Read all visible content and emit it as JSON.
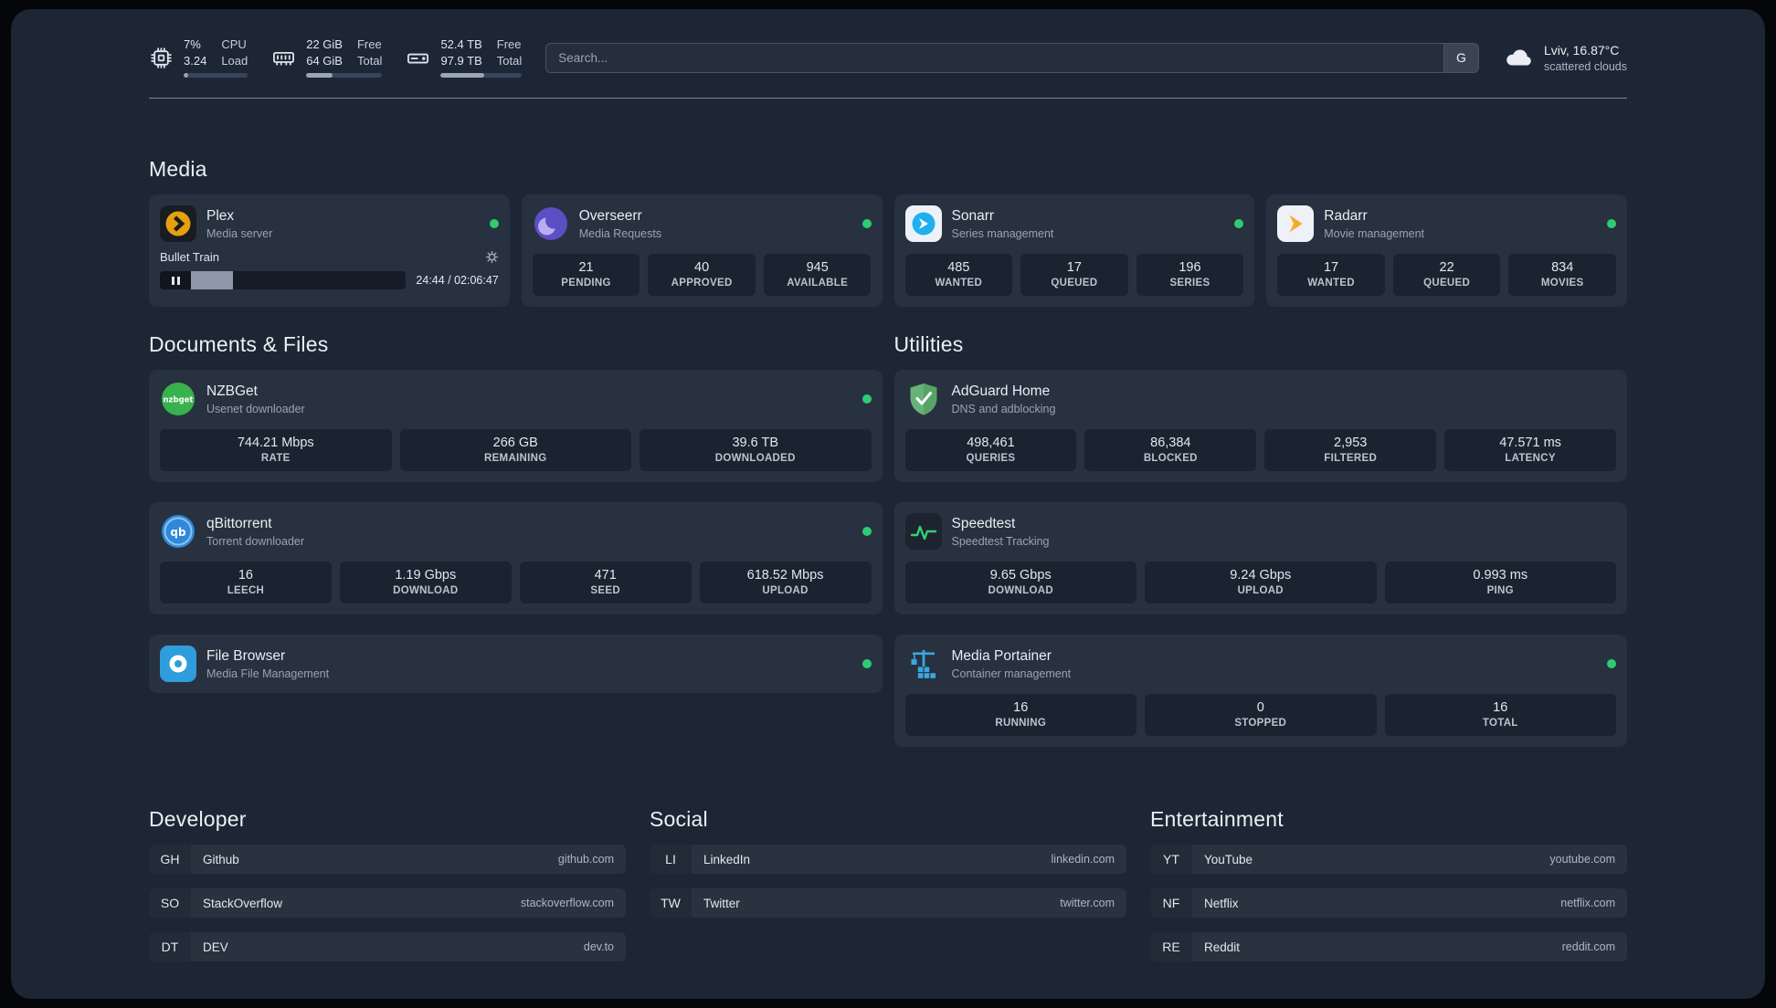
{
  "colors": {
    "status_green": "#2ecc71",
    "panel_bg": "#1d2634",
    "card_bg": "#28313f",
    "stat_bg": "#1b2331",
    "speedtest_line": "#2dd36f",
    "plex_gold": "#e5a00d"
  },
  "icons": [
    "cpu-chip-icon",
    "ram-icon",
    "hard-drive-icon",
    "cloud-icon",
    "plex-icon",
    "gear-icon",
    "pause-icon",
    "overseerr-icon",
    "sonarr-icon",
    "radarr-icon",
    "nzbget-icon",
    "qbittorrent-icon",
    "filebrowser-icon",
    "adguard-shield-icon",
    "speedtest-icon",
    "portainer-icon",
    "status-dot"
  ],
  "header": {
    "cpu": {
      "percent": "7%",
      "load": "3.24",
      "label_top": "CPU",
      "label_bottom": "Load",
      "bar_percent": 7
    },
    "memory": {
      "free": "22 GiB",
      "total": "64 GiB",
      "label_top": "Free",
      "label_bottom": "Total",
      "bar_percent": 34
    },
    "disk": {
      "free": "52.4 TB",
      "total": "97.9 TB",
      "label_top": "Free",
      "label_bottom": "Total",
      "bar_percent": 54
    },
    "search": {
      "placeholder": "Search...",
      "button_label": "G"
    },
    "weather": {
      "location": "Lviv, 16.87°C",
      "condition": "scattered clouds"
    }
  },
  "media": {
    "title": "Media",
    "plex": {
      "name": "Plex",
      "desc": "Media server",
      "now_playing": {
        "title": "Bullet Train",
        "time": "24:44 / 02:06:47",
        "progress_percent": 19.5
      }
    },
    "overseerr": {
      "name": "Overseerr",
      "desc": "Media Requests",
      "stats": [
        {
          "value": "21",
          "label": "PENDING"
        },
        {
          "value": "40",
          "label": "APPROVED"
        },
        {
          "value": "945",
          "label": "AVAILABLE"
        }
      ]
    },
    "sonarr": {
      "name": "Sonarr",
      "desc": "Series management",
      "stats": [
        {
          "value": "485",
          "label": "WANTED"
        },
        {
          "value": "17",
          "label": "QUEUED"
        },
        {
          "value": "196",
          "label": "SERIES"
        }
      ]
    },
    "radarr": {
      "name": "Radarr",
      "desc": "Movie management",
      "stats": [
        {
          "value": "17",
          "label": "WANTED"
        },
        {
          "value": "22",
          "label": "QUEUED"
        },
        {
          "value": "834",
          "label": "MOVIES"
        }
      ]
    }
  },
  "documents": {
    "title": "Documents & Files",
    "nzbget": {
      "name": "NZBGet",
      "desc": "Usenet downloader",
      "stats": [
        {
          "value": "744.21 Mbps",
          "label": "RATE"
        },
        {
          "value": "266 GB",
          "label": "REMAINING"
        },
        {
          "value": "39.6 TB",
          "label": "DOWNLOADED"
        }
      ]
    },
    "qbittorrent": {
      "name": "qBittorrent",
      "desc": "Torrent downloader",
      "stats": [
        {
          "value": "16",
          "label": "LEECH"
        },
        {
          "value": "1.19 Gbps",
          "label": "DOWNLOAD"
        },
        {
          "value": "471",
          "label": "SEED"
        },
        {
          "value": "618.52 Mbps",
          "label": "UPLOAD"
        }
      ]
    },
    "filebrowser": {
      "name": "File Browser",
      "desc": "Media File Management"
    }
  },
  "utilities": {
    "title": "Utilities",
    "adguard": {
      "name": "AdGuard Home",
      "desc": "DNS and adblocking",
      "stats": [
        {
          "value": "498,461",
          "label": "QUERIES"
        },
        {
          "value": "86,384",
          "label": "BLOCKED"
        },
        {
          "value": "2,953",
          "label": "FILTERED"
        },
        {
          "value": "47.571 ms",
          "label": "LATENCY"
        }
      ]
    },
    "speedtest": {
      "name": "Speedtest",
      "desc": "Speedtest Tracking",
      "stats": [
        {
          "value": "9.65 Gbps",
          "label": "DOWNLOAD"
        },
        {
          "value": "9.24 Gbps",
          "label": "UPLOAD"
        },
        {
          "value": "0.993 ms",
          "label": "PING"
        }
      ]
    },
    "portainer": {
      "name": "Media Portainer",
      "desc": "Container management",
      "stats": [
        {
          "value": "16",
          "label": "RUNNING"
        },
        {
          "value": "0",
          "label": "STOPPED"
        },
        {
          "value": "16",
          "label": "TOTAL"
        }
      ]
    }
  },
  "bookmarks": {
    "developer": {
      "title": "Developer",
      "items": [
        {
          "abbr": "GH",
          "name": "Github",
          "url": "github.com"
        },
        {
          "abbr": "SO",
          "name": "StackOverflow",
          "url": "stackoverflow.com"
        },
        {
          "abbr": "DT",
          "name": "DEV",
          "url": "dev.to"
        }
      ]
    },
    "social": {
      "title": "Social",
      "items": [
        {
          "abbr": "LI",
          "name": "LinkedIn",
          "url": "linkedin.com"
        },
        {
          "abbr": "TW",
          "name": "Twitter",
          "url": "twitter.com"
        }
      ]
    },
    "entertainment": {
      "title": "Entertainment",
      "items": [
        {
          "abbr": "YT",
          "name": "YouTube",
          "url": "youtube.com"
        },
        {
          "abbr": "NF",
          "name": "Netflix",
          "url": "netflix.com"
        },
        {
          "abbr": "RE",
          "name": "Reddit",
          "url": "reddit.com"
        }
      ]
    }
  }
}
